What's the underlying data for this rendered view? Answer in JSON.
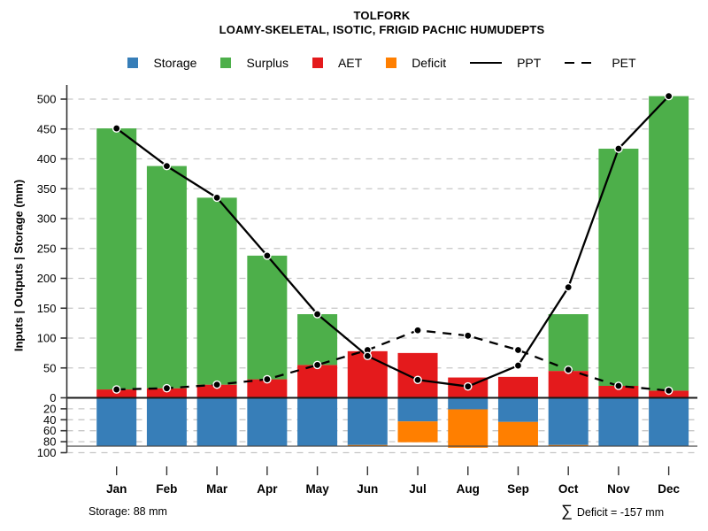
{
  "title": "TOLFORK",
  "subtitle": "LOAMY-SKELETAL, ISOTIC, FRIGID PACHIC HUMUDEPTS",
  "y_axis": {
    "title": "Inputs | Outputs | Storage  (mm)"
  },
  "legend": {
    "items": [
      {
        "label": "Storage",
        "swatch": "box",
        "color": "#377EB8"
      },
      {
        "label": "Surplus",
        "swatch": "box",
        "color": "#4DAF4A"
      },
      {
        "label": "AET",
        "swatch": "box",
        "color": "#E41A1C"
      },
      {
        "label": "Deficit",
        "swatch": "box",
        "color": "#FF7F00"
      },
      {
        "label": "PPT",
        "swatch": "line",
        "color": "#000000"
      },
      {
        "label": "PET",
        "swatch": "dash",
        "color": "#000000"
      }
    ]
  },
  "annotations": {
    "storage": "Storage: 88 mm",
    "deficit_sigma": "∑",
    "deficit_text": "Deficit = -157 mm"
  },
  "colors": {
    "storage": "#377EB8",
    "surplus": "#4DAF4A",
    "aet": "#E41A1C",
    "deficit": "#FF7F00",
    "line": "#000000",
    "grid": "#c6c6c6",
    "zero_line": "#1a1a1a",
    "awc_line": "#444444"
  },
  "chart_data": {
    "type": "bar",
    "subtype": "stacked-bars-with-lines (monthly water balance)",
    "categories": [
      "Jan",
      "Feb",
      "Mar",
      "Apr",
      "May",
      "Jun",
      "Jul",
      "Aug",
      "Sep",
      "Oct",
      "Nov",
      "Dec"
    ],
    "bar_series": [
      {
        "name": "AET",
        "stack": "up",
        "color": "#E41A1C",
        "values": [
          14,
          16,
          22,
          31,
          55,
          78,
          75,
          34,
          35,
          45,
          20,
          12
        ]
      },
      {
        "name": "Surplus",
        "stack": "up",
        "color": "#4DAF4A",
        "values": [
          437,
          372,
          313,
          207,
          85,
          0,
          0,
          0,
          0,
          95,
          397,
          493
        ]
      },
      {
        "name": "Storage",
        "stack": "down",
        "color": "#377EB8",
        "values": [
          88,
          88,
          88,
          88,
          88,
          86,
          43,
          21,
          44,
          86,
          88,
          88
        ]
      },
      {
        "name": "Deficit",
        "stack": "down",
        "color": "#FF7F00",
        "values": [
          0,
          0,
          0,
          0,
          0,
          2,
          38,
          70,
          45,
          2,
          0,
          0
        ]
      }
    ],
    "line_series": [
      {
        "name": "PPT",
        "style": "solid",
        "values": [
          451,
          388,
          335,
          238,
          140,
          70,
          30,
          19,
          54,
          185,
          417,
          505
        ]
      },
      {
        "name": "PET",
        "style": "dashed",
        "values": [
          14,
          16,
          22,
          31,
          55,
          80,
          113,
          104,
          80,
          47,
          20,
          12
        ]
      }
    ],
    "y_axis_upper": {
      "min": 0,
      "max": 500,
      "tick_step": 50,
      "direction": "up"
    },
    "y_axis_lower": {
      "min": 0,
      "max": 100,
      "tick_step": 20,
      "direction": "down"
    },
    "awc_mm": 88,
    "sum_deficit_mm": -157,
    "grid": "dashed-horizontal",
    "legend_position": "top-center"
  }
}
